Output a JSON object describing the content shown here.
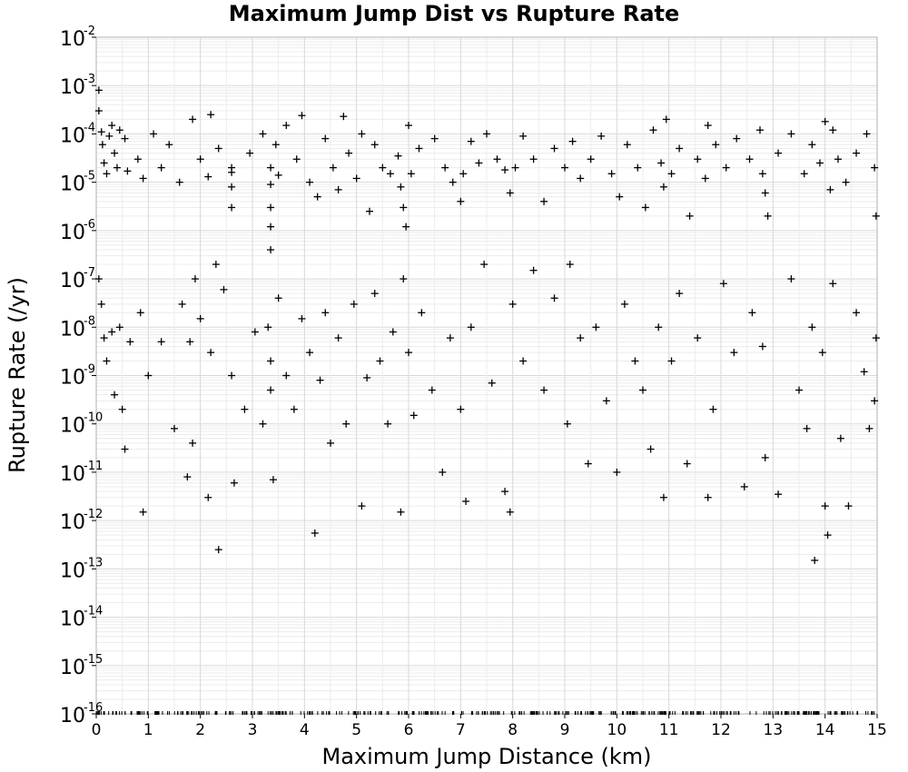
{
  "chart_data": {
    "type": "scatter",
    "title": "Maximum Jump Dist vs Rupture Rate",
    "xlabel": "Maximum Jump Distance (km)",
    "ylabel": "Rupture Rate (/yr)",
    "xlim": [
      0,
      15
    ],
    "ylim": [
      1e-16,
      0.01
    ],
    "y_scale": "log",
    "grid": true,
    "legend": "none",
    "marker": "plus",
    "marker_color": "#000000",
    "x_ticks": [
      "0",
      "1",
      "2",
      "3",
      "4",
      "5",
      "6",
      "7",
      "8",
      "9",
      "10",
      "11",
      "12",
      "13",
      "14",
      "15"
    ],
    "y_ticks": [
      {
        "base": "10",
        "exp": "-2"
      },
      {
        "base": "10",
        "exp": "-3"
      },
      {
        "base": "10",
        "exp": "-4"
      },
      {
        "base": "10",
        "exp": "-5"
      },
      {
        "base": "10",
        "exp": "-6"
      },
      {
        "base": "10",
        "exp": "-7"
      },
      {
        "base": "10",
        "exp": "-8"
      },
      {
        "base": "10",
        "exp": "-9"
      },
      {
        "base": "10",
        "exp": "-10"
      },
      {
        "base": "10",
        "exp": "-11"
      },
      {
        "base": "10",
        "exp": "-12"
      },
      {
        "base": "10",
        "exp": "-13"
      },
      {
        "base": "10",
        "exp": "-14"
      },
      {
        "base": "10",
        "exp": "-15"
      },
      {
        "base": "10",
        "exp": "-16"
      }
    ],
    "series": [
      {
        "points": [
          {
            "x": 0.05,
            "y": 0.0008
          },
          {
            "x": 0.05,
            "y": 0.0003
          },
          {
            "x": 0.1,
            "y": 0.00011
          },
          {
            "x": 0.12,
            "y": 6e-05
          },
          {
            "x": 0.15,
            "y": 2.5e-05
          },
          {
            "x": 0.2,
            "y": 1.5e-05
          },
          {
            "x": 0.25,
            "y": 9e-05
          },
          {
            "x": 0.3,
            "y": 0.00015
          },
          {
            "x": 0.35,
            "y": 4e-05
          },
          {
            "x": 0.4,
            "y": 2e-05
          },
          {
            "x": 0.45,
            "y": 0.00012
          },
          {
            "x": 0.55,
            "y": 8e-05
          },
          {
            "x": 0.6,
            "y": 1.7e-05
          },
          {
            "x": 0.8,
            "y": 3e-05
          },
          {
            "x": 0.9,
            "y": 1.2e-05
          },
          {
            "x": 1.1,
            "y": 0.0001
          },
          {
            "x": 1.25,
            "y": 2e-05
          },
          {
            "x": 1.4,
            "y": 6e-05
          },
          {
            "x": 1.6,
            "y": 1e-05
          },
          {
            "x": 1.85,
            "y": 0.0002
          },
          {
            "x": 2.0,
            "y": 3e-05
          },
          {
            "x": 2.15,
            "y": 1.3e-05
          },
          {
            "x": 2.2,
            "y": 0.00025
          },
          {
            "x": 2.35,
            "y": 5e-05
          },
          {
            "x": 2.6,
            "y": 2e-05
          },
          {
            "x": 2.6,
            "y": 8e-06
          },
          {
            "x": 2.6,
            "y": 3e-06
          },
          {
            "x": 2.6,
            "y": 1.6e-05
          },
          {
            "x": 2.95,
            "y": 4e-05
          },
          {
            "x": 3.2,
            "y": 0.0001
          },
          {
            "x": 3.35,
            "y": 2e-05
          },
          {
            "x": 3.35,
            "y": 9e-06
          },
          {
            "x": 3.35,
            "y": 3e-06
          },
          {
            "x": 3.35,
            "y": 1.2e-06
          },
          {
            "x": 3.35,
            "y": 4e-07
          },
          {
            "x": 3.45,
            "y": 6e-05
          },
          {
            "x": 3.5,
            "y": 1.4e-05
          },
          {
            "x": 3.65,
            "y": 0.00015
          },
          {
            "x": 3.85,
            "y": 3e-05
          },
          {
            "x": 3.95,
            "y": 0.00024
          },
          {
            "x": 4.1,
            "y": 1e-05
          },
          {
            "x": 4.25,
            "y": 5e-06
          },
          {
            "x": 4.4,
            "y": 8e-05
          },
          {
            "x": 4.55,
            "y": 2e-05
          },
          {
            "x": 4.65,
            "y": 7e-06
          },
          {
            "x": 4.75,
            "y": 0.00023
          },
          {
            "x": 4.85,
            "y": 4e-05
          },
          {
            "x": 5.0,
            "y": 1.2e-05
          },
          {
            "x": 5.1,
            "y": 0.0001
          },
          {
            "x": 5.25,
            "y": 2.5e-06
          },
          {
            "x": 5.35,
            "y": 6e-05
          },
          {
            "x": 5.5,
            "y": 2e-05
          },
          {
            "x": 5.65,
            "y": 1.5e-05
          },
          {
            "x": 5.8,
            "y": 3.5e-05
          },
          {
            "x": 5.85,
            "y": 8e-06
          },
          {
            "x": 5.9,
            "y": 3e-06
          },
          {
            "x": 5.95,
            "y": 1.2e-06
          },
          {
            "x": 6.0,
            "y": 0.00015
          },
          {
            "x": 6.05,
            "y": 1.5e-05
          },
          {
            "x": 6.2,
            "y": 5e-05
          },
          {
            "x": 6.5,
            "y": 8e-05
          },
          {
            "x": 6.7,
            "y": 2e-05
          },
          {
            "x": 6.85,
            "y": 1e-05
          },
          {
            "x": 7.0,
            "y": 4e-06
          },
          {
            "x": 7.05,
            "y": 1.5e-05
          },
          {
            "x": 7.2,
            "y": 7e-05
          },
          {
            "x": 7.35,
            "y": 2.5e-05
          },
          {
            "x": 7.5,
            "y": 0.0001
          },
          {
            "x": 7.7,
            "y": 3e-05
          },
          {
            "x": 7.85,
            "y": 1.8e-05
          },
          {
            "x": 7.95,
            "y": 6e-06
          },
          {
            "x": 8.05,
            "y": 2e-05
          },
          {
            "x": 8.2,
            "y": 9e-05
          },
          {
            "x": 8.4,
            "y": 3e-05
          },
          {
            "x": 8.6,
            "y": 4e-06
          },
          {
            "x": 8.8,
            "y": 5e-05
          },
          {
            "x": 9.0,
            "y": 2e-05
          },
          {
            "x": 9.15,
            "y": 7e-05
          },
          {
            "x": 9.3,
            "y": 1.2e-05
          },
          {
            "x": 9.5,
            "y": 3e-05
          },
          {
            "x": 9.7,
            "y": 9e-05
          },
          {
            "x": 9.9,
            "y": 1.5e-05
          },
          {
            "x": 10.05,
            "y": 5e-06
          },
          {
            "x": 10.2,
            "y": 6e-05
          },
          {
            "x": 10.4,
            "y": 2e-05
          },
          {
            "x": 10.55,
            "y": 3e-06
          },
          {
            "x": 10.7,
            "y": 0.00012
          },
          {
            "x": 10.85,
            "y": 2.5e-05
          },
          {
            "x": 10.9,
            "y": 8e-06
          },
          {
            "x": 10.95,
            "y": 0.0002
          },
          {
            "x": 11.05,
            "y": 1.5e-05
          },
          {
            "x": 11.2,
            "y": 5e-05
          },
          {
            "x": 11.4,
            "y": 2e-06
          },
          {
            "x": 11.55,
            "y": 3e-05
          },
          {
            "x": 11.7,
            "y": 1.2e-05
          },
          {
            "x": 11.75,
            "y": 0.00015
          },
          {
            "x": 11.9,
            "y": 6e-05
          },
          {
            "x": 12.1,
            "y": 2e-05
          },
          {
            "x": 12.3,
            "y": 8e-05
          },
          {
            "x": 12.55,
            "y": 3e-05
          },
          {
            "x": 12.75,
            "y": 0.00012
          },
          {
            "x": 12.8,
            "y": 1.5e-05
          },
          {
            "x": 12.85,
            "y": 6e-06
          },
          {
            "x": 12.9,
            "y": 2e-06
          },
          {
            "x": 13.1,
            "y": 4e-05
          },
          {
            "x": 13.35,
            "y": 0.0001
          },
          {
            "x": 13.6,
            "y": 1.5e-05
          },
          {
            "x": 13.75,
            "y": 6e-05
          },
          {
            "x": 13.9,
            "y": 2.5e-05
          },
          {
            "x": 14.0,
            "y": 0.00018
          },
          {
            "x": 14.1,
            "y": 7e-06
          },
          {
            "x": 14.15,
            "y": 0.00012
          },
          {
            "x": 14.25,
            "y": 3e-05
          },
          {
            "x": 14.4,
            "y": 1e-05
          },
          {
            "x": 14.6,
            "y": 4e-05
          },
          {
            "x": 14.8,
            "y": 0.0001
          },
          {
            "x": 14.95,
            "y": 2e-05
          },
          {
            "x": 14.98,
            "y": 2e-06
          },
          {
            "x": 0.05,
            "y": 1e-07
          },
          {
            "x": 0.1,
            "y": 3e-08
          },
          {
            "x": 0.15,
            "y": 6e-09
          },
          {
            "x": 0.2,
            "y": 2e-09
          },
          {
            "x": 0.3,
            "y": 8e-09
          },
          {
            "x": 0.35,
            "y": 4e-10
          },
          {
            "x": 0.45,
            "y": 1e-08
          },
          {
            "x": 0.5,
            "y": 2e-10
          },
          {
            "x": 0.55,
            "y": 3e-11
          },
          {
            "x": 0.65,
            "y": 5e-09
          },
          {
            "x": 0.85,
            "y": 2e-08
          },
          {
            "x": 0.9,
            "y": 1.5e-12
          },
          {
            "x": 1.0,
            "y": 1e-09
          },
          {
            "x": 1.25,
            "y": 5e-09
          },
          {
            "x": 1.5,
            "y": 8e-11
          },
          {
            "x": 1.65,
            "y": 3e-08
          },
          {
            "x": 1.75,
            "y": 8e-12
          },
          {
            "x": 1.8,
            "y": 5e-09
          },
          {
            "x": 1.85,
            "y": 4e-11
          },
          {
            "x": 1.9,
            "y": 1e-07
          },
          {
            "x": 2.0,
            "y": 1.5e-08
          },
          {
            "x": 2.15,
            "y": 3e-12
          },
          {
            "x": 2.2,
            "y": 3e-09
          },
          {
            "x": 2.3,
            "y": 2e-07
          },
          {
            "x": 2.35,
            "y": 2.5e-13
          },
          {
            "x": 2.45,
            "y": 6e-08
          },
          {
            "x": 2.6,
            "y": 1e-09
          },
          {
            "x": 2.65,
            "y": 6e-12
          },
          {
            "x": 2.85,
            "y": 2e-10
          },
          {
            "x": 3.05,
            "y": 8e-09
          },
          {
            "x": 3.2,
            "y": 1e-10
          },
          {
            "x": 3.3,
            "y": 1e-08
          },
          {
            "x": 3.35,
            "y": 2e-09
          },
          {
            "x": 3.35,
            "y": 5e-10
          },
          {
            "x": 3.4,
            "y": 7e-12
          },
          {
            "x": 3.5,
            "y": 4e-08
          },
          {
            "x": 3.65,
            "y": 1e-09
          },
          {
            "x": 3.8,
            "y": 2e-10
          },
          {
            "x": 3.95,
            "y": 1.5e-08
          },
          {
            "x": 4.1,
            "y": 3e-09
          },
          {
            "x": 4.2,
            "y": 5.5e-13
          },
          {
            "x": 4.3,
            "y": 8e-10
          },
          {
            "x": 4.4,
            "y": 2e-08
          },
          {
            "x": 4.5,
            "y": 4e-11
          },
          {
            "x": 4.65,
            "y": 6e-09
          },
          {
            "x": 4.8,
            "y": 1e-10
          },
          {
            "x": 4.95,
            "y": 3e-08
          },
          {
            "x": 5.1,
            "y": 2e-12
          },
          {
            "x": 5.2,
            "y": 9e-10
          },
          {
            "x": 5.35,
            "y": 5e-08
          },
          {
            "x": 5.45,
            "y": 2e-09
          },
          {
            "x": 5.6,
            "y": 1e-10
          },
          {
            "x": 5.7,
            "y": 8e-09
          },
          {
            "x": 5.85,
            "y": 1.5e-12
          },
          {
            "x": 5.9,
            "y": 1e-07
          },
          {
            "x": 6.0,
            "y": 3e-09
          },
          {
            "x": 6.1,
            "y": 1.5e-10
          },
          {
            "x": 6.25,
            "y": 2e-08
          },
          {
            "x": 6.45,
            "y": 5e-10
          },
          {
            "x": 6.65,
            "y": 1e-11
          },
          {
            "x": 6.8,
            "y": 6e-09
          },
          {
            "x": 7.0,
            "y": 2e-10
          },
          {
            "x": 7.1,
            "y": 2.5e-12
          },
          {
            "x": 7.2,
            "y": 1e-08
          },
          {
            "x": 7.45,
            "y": 2e-07
          },
          {
            "x": 7.6,
            "y": 7e-10
          },
          {
            "x": 7.85,
            "y": 4e-12
          },
          {
            "x": 7.95,
            "y": 1.5e-12
          },
          {
            "x": 8.0,
            "y": 3e-08
          },
          {
            "x": 8.2,
            "y": 2e-09
          },
          {
            "x": 8.4,
            "y": 1.5e-07
          },
          {
            "x": 8.6,
            "y": 5e-10
          },
          {
            "x": 8.8,
            "y": 4e-08
          },
          {
            "x": 9.05,
            "y": 1e-10
          },
          {
            "x": 9.1,
            "y": 2e-07
          },
          {
            "x": 9.3,
            "y": 6e-09
          },
          {
            "x": 9.45,
            "y": 1.5e-11
          },
          {
            "x": 9.6,
            "y": 1e-08
          },
          {
            "x": 9.8,
            "y": 3e-10
          },
          {
            "x": 10.0,
            "y": 1e-11
          },
          {
            "x": 10.15,
            "y": 3e-08
          },
          {
            "x": 10.35,
            "y": 2e-09
          },
          {
            "x": 10.5,
            "y": 5e-10
          },
          {
            "x": 10.65,
            "y": 3e-11
          },
          {
            "x": 10.8,
            "y": 1e-08
          },
          {
            "x": 10.9,
            "y": 3e-12
          },
          {
            "x": 11.05,
            "y": 2e-09
          },
          {
            "x": 11.2,
            "y": 5e-08
          },
          {
            "x": 11.35,
            "y": 1.5e-11
          },
          {
            "x": 11.55,
            "y": 6e-09
          },
          {
            "x": 11.75,
            "y": 3e-12
          },
          {
            "x": 11.85,
            "y": 2e-10
          },
          {
            "x": 12.05,
            "y": 8e-08
          },
          {
            "x": 12.25,
            "y": 3e-09
          },
          {
            "x": 12.45,
            "y": 5e-12
          },
          {
            "x": 12.6,
            "y": 2e-08
          },
          {
            "x": 12.8,
            "y": 4e-09
          },
          {
            "x": 12.85,
            "y": 2e-11
          },
          {
            "x": 13.1,
            "y": 3.5e-12
          },
          {
            "x": 13.35,
            "y": 1e-07
          },
          {
            "x": 13.5,
            "y": 5e-10
          },
          {
            "x": 13.65,
            "y": 8e-11
          },
          {
            "x": 13.75,
            "y": 1e-08
          },
          {
            "x": 13.8,
            "y": 1.5e-13
          },
          {
            "x": 13.95,
            "y": 3e-09
          },
          {
            "x": 14.0,
            "y": 2e-12
          },
          {
            "x": 14.05,
            "y": 5e-13
          },
          {
            "x": 14.15,
            "y": 8e-08
          },
          {
            "x": 14.3,
            "y": 5e-11
          },
          {
            "x": 14.45,
            "y": 2e-12
          },
          {
            "x": 14.6,
            "y": 2e-08
          },
          {
            "x": 14.75,
            "y": 1.2e-09
          },
          {
            "x": 14.85,
            "y": 8e-11
          },
          {
            "x": 14.95,
            "y": 3e-10
          },
          {
            "x": 14.98,
            "y": 6e-09
          }
        ]
      }
    ]
  }
}
